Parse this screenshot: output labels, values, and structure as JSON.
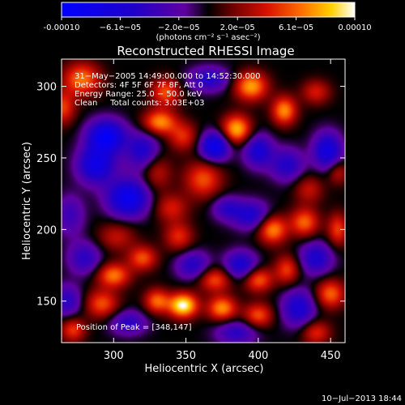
{
  "chart_data": {
    "type": "heatmap",
    "title": "Reconstructed RHESSI Image",
    "xlabel": "Heliocentric X (arcsec)",
    "ylabel": "Heliocentric Y (arcsec)",
    "x_ticks": [
      300,
      350,
      400,
      450
    ],
    "y_ticks": [
      150,
      200,
      250,
      300
    ],
    "xlim": [
      264,
      460
    ],
    "ylim": [
      121,
      319
    ],
    "colorbar": {
      "tick_labels": [
        "-0.00010",
        "−6.1e−05",
        "−2.0e−05",
        "2.0e−05",
        "6.1e−05",
        "0.00010"
      ],
      "unit_label": "(photons cm⁻² s⁻¹ asec⁻²)",
      "range": [
        -0.0001,
        0.0001
      ]
    },
    "annotations": [
      "31−May−2005 14:49:00.000 to 14:52:30.000",
      "Detectors: 4F 5F 6F 7F 8F, Att 0",
      "Energy Range: 25.0 − 50.0 keV",
      "Clean     Total counts: 3.03E+03"
    ],
    "peak_label": "Position of Peak = [348,147]",
    "peak": [
      348,
      147
    ],
    "timestamp": "10−Jul−2013 18:44",
    "blobs": [
      {
        "x": 295,
        "y": 265,
        "v": -0.9,
        "sx": 9,
        "sy": 8
      },
      {
        "x": 288,
        "y": 245,
        "v": -0.75,
        "sx": 9,
        "sy": 9
      },
      {
        "x": 310,
        "y": 222,
        "v": -0.85,
        "sx": 10,
        "sy": 9
      },
      {
        "x": 320,
        "y": 255,
        "v": -0.55,
        "sx": 8,
        "sy": 9
      },
      {
        "x": 270,
        "y": 210,
        "v": -0.35,
        "sx": 7,
        "sy": 10
      },
      {
        "x": 332,
        "y": 275,
        "v": 0.7,
        "sx": 8,
        "sy": 6
      },
      {
        "x": 336,
        "y": 296,
        "v": 0.55,
        "sx": 7,
        "sy": 7
      },
      {
        "x": 278,
        "y": 305,
        "v": 0.65,
        "sx": 9,
        "sy": 8
      },
      {
        "x": 265,
        "y": 285,
        "v": 0.5,
        "sx": 6,
        "sy": 8
      },
      {
        "x": 330,
        "y": 240,
        "v": 0.35,
        "sx": 7,
        "sy": 9
      },
      {
        "x": 340,
        "y": 215,
        "v": 0.4,
        "sx": 8,
        "sy": 7
      },
      {
        "x": 362,
        "y": 235,
        "v": 0.55,
        "sx": 9,
        "sy": 9
      },
      {
        "x": 370,
        "y": 258,
        "v": -0.85,
        "sx": 7,
        "sy": 7
      },
      {
        "x": 400,
        "y": 255,
        "v": -0.6,
        "sx": 7,
        "sy": 8
      },
      {
        "x": 348,
        "y": 265,
        "v": 0.45,
        "sx": 7,
        "sy": 7
      },
      {
        "x": 385,
        "y": 270,
        "v": 0.8,
        "sx": 7,
        "sy": 7
      },
      {
        "x": 395,
        "y": 300,
        "v": 0.75,
        "sx": 8,
        "sy": 7
      },
      {
        "x": 418,
        "y": 283,
        "v": 0.7,
        "sx": 6,
        "sy": 7
      },
      {
        "x": 440,
        "y": 296,
        "v": 0.4,
        "sx": 7,
        "sy": 6
      },
      {
        "x": 366,
        "y": 305,
        "v": -0.5,
        "sx": 10,
        "sy": 6
      },
      {
        "x": 420,
        "y": 245,
        "v": -0.5,
        "sx": 8,
        "sy": 8
      },
      {
        "x": 448,
        "y": 255,
        "v": -0.7,
        "sx": 7,
        "sy": 9
      },
      {
        "x": 435,
        "y": 228,
        "v": 0.35,
        "sx": 7,
        "sy": 7
      },
      {
        "x": 395,
        "y": 210,
        "v": -0.55,
        "sx": 9,
        "sy": 7
      },
      {
        "x": 378,
        "y": 215,
        "v": -0.4,
        "sx": 7,
        "sy": 6
      },
      {
        "x": 410,
        "y": 200,
        "v": 0.7,
        "sx": 7,
        "sy": 7
      },
      {
        "x": 432,
        "y": 205,
        "v": 0.6,
        "sx": 7,
        "sy": 7
      },
      {
        "x": 455,
        "y": 200,
        "v": 0.5,
        "sx": 5,
        "sy": 8
      },
      {
        "x": 302,
        "y": 195,
        "v": 0.35,
        "sx": 9,
        "sy": 7
      },
      {
        "x": 280,
        "y": 180,
        "v": -0.45,
        "sx": 8,
        "sy": 8
      },
      {
        "x": 320,
        "y": 180,
        "v": 0.55,
        "sx": 7,
        "sy": 6
      },
      {
        "x": 300,
        "y": 168,
        "v": 0.65,
        "sx": 8,
        "sy": 6
      },
      {
        "x": 345,
        "y": 195,
        "v": 0.45,
        "sx": 7,
        "sy": 7
      },
      {
        "x": 355,
        "y": 175,
        "v": -0.5,
        "sx": 8,
        "sy": 7
      },
      {
        "x": 388,
        "y": 175,
        "v": -0.6,
        "sx": 8,
        "sy": 7
      },
      {
        "x": 370,
        "y": 165,
        "v": 0.55,
        "sx": 8,
        "sy": 6
      },
      {
        "x": 400,
        "y": 165,
        "v": 0.6,
        "sx": 7,
        "sy": 6
      },
      {
        "x": 420,
        "y": 172,
        "v": 0.5,
        "sx": 6,
        "sy": 7
      },
      {
        "x": 440,
        "y": 180,
        "v": -0.55,
        "sx": 8,
        "sy": 8
      },
      {
        "x": 428,
        "y": 145,
        "v": -0.6,
        "sx": 8,
        "sy": 9
      },
      {
        "x": 450,
        "y": 155,
        "v": 0.6,
        "sx": 7,
        "sy": 7
      },
      {
        "x": 348,
        "y": 147,
        "v": 1.0,
        "sx": 7,
        "sy": 6
      },
      {
        "x": 330,
        "y": 150,
        "v": 0.6,
        "sx": 6,
        "sy": 6
      },
      {
        "x": 375,
        "y": 145,
        "v": 0.7,
        "sx": 7,
        "sy": 6
      },
      {
        "x": 400,
        "y": 140,
        "v": 0.55,
        "sx": 7,
        "sy": 6
      },
      {
        "x": 292,
        "y": 148,
        "v": 0.55,
        "sx": 8,
        "sy": 7
      },
      {
        "x": 268,
        "y": 150,
        "v": -0.45,
        "sx": 7,
        "sy": 8
      },
      {
        "x": 310,
        "y": 135,
        "v": -0.45,
        "sx": 9,
        "sy": 6
      },
      {
        "x": 385,
        "y": 128,
        "v": -0.45,
        "sx": 10,
        "sy": 6
      },
      {
        "x": 440,
        "y": 128,
        "v": 0.45,
        "sx": 7,
        "sy": 6
      },
      {
        "x": 272,
        "y": 130,
        "v": 0.5,
        "sx": 6,
        "sy": 6
      },
      {
        "x": 455,
        "y": 240,
        "v": 0.35,
        "sx": 5,
        "sy": 6
      }
    ]
  }
}
